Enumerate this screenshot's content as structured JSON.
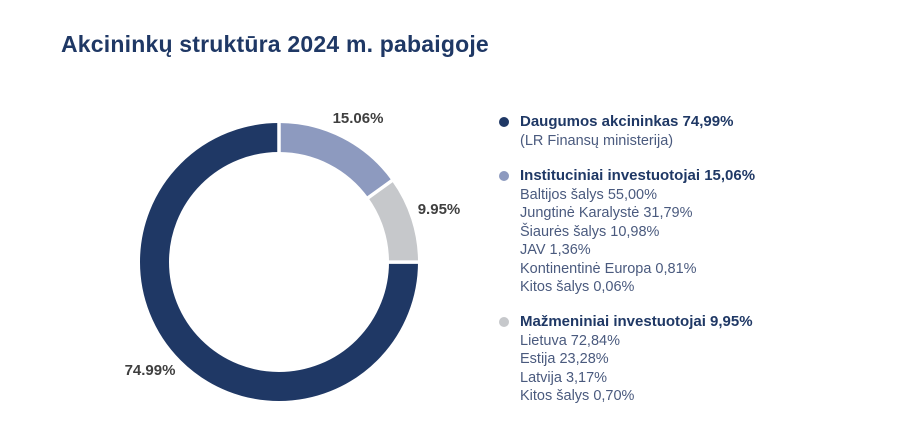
{
  "title": "Akcininkų struktūra 2024 m. pabaigoje",
  "chart_data": {
    "type": "pie",
    "variant": "donut",
    "title": "Akcininkų struktūra 2024 m. pabaigoje",
    "start_angle_deg": 0,
    "direction": "clockwise",
    "total": 100,
    "segments": [
      {
        "name": "Instituciniai investuotojai",
        "value": 15.06,
        "display_label": "15.06%",
        "color": "#8D9ABF"
      },
      {
        "name": "Mažmeniniai investuotojai",
        "value": 9.95,
        "display_label": "9.95%",
        "color": "#C6C8CB"
      },
      {
        "name": "Daugumos akcininkas",
        "value": 74.99,
        "display_label": "74.99%",
        "color": "#1F3865"
      }
    ]
  },
  "legend": {
    "groups": [
      {
        "heading": "Daugumos akcininkas 74,99%",
        "bullet_color": "#1F3865",
        "items": [
          "(LR Finansų ministerija)"
        ]
      },
      {
        "heading": "Instituciniai investuotojai 15,06%",
        "bullet_color": "#8D9ABF",
        "items": [
          "Baltijos šalys 55,00%",
          "Jungtinė Karalystė 31,79%",
          "Šiaurės šalys 10,98%",
          "JAV 1,36%",
          "Kontinentinė Europa 0,81%",
          "Kitos šalys 0,06%"
        ]
      },
      {
        "heading": "Mažmeniniai investuotojai 9,95%",
        "bullet_color": "#C6C8CB",
        "items": [
          "Lietuva 72,84%",
          "Estija 23,28%",
          "Latvija 3,17%",
          "Kitos šalys 0,70%"
        ]
      }
    ]
  },
  "colors": {
    "title_text": "#1F3865",
    "legend_heading_text": "#1F3865",
    "legend_item_text": "#4A5A7E",
    "slice_label_text": "#3F3F3F",
    "background": "#FFFFFF",
    "segment_separator": "#FFFFFF"
  }
}
